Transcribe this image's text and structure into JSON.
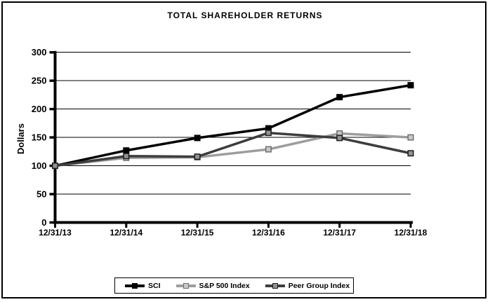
{
  "chart_data": {
    "type": "line",
    "title": "TOTAL SHAREHOLDER RETURNS",
    "xlabel": "",
    "ylabel": "Dollars",
    "categories": [
      "12/31/13",
      "12/31/14",
      "12/31/15",
      "12/31/16",
      "12/31/17",
      "12/31/18"
    ],
    "ylim": [
      0,
      300
    ],
    "yticks": [
      0,
      50,
      100,
      150,
      200,
      250,
      300
    ],
    "grid": "horizontal",
    "legend_position": "bottom",
    "series": [
      {
        "name": "SCI",
        "values": [
          100,
          127,
          149,
          166,
          221,
          242
        ],
        "line_color": "#000000",
        "marker_fill": "#000000",
        "marker_stroke": "#000000"
      },
      {
        "name": "S&P 500 Index",
        "values": [
          100,
          114,
          115,
          129,
          157,
          150
        ],
        "line_color": "#9d9d9d",
        "marker_fill": "#c8c8c8",
        "marker_stroke": "#6e6e6e"
      },
      {
        "name": "Peer Group Index",
        "values": [
          100,
          117,
          116,
          158,
          149,
          122
        ],
        "line_color": "#3d3d3d",
        "marker_fill": "#919191",
        "marker_stroke": "#1f1f1f"
      }
    ]
  }
}
